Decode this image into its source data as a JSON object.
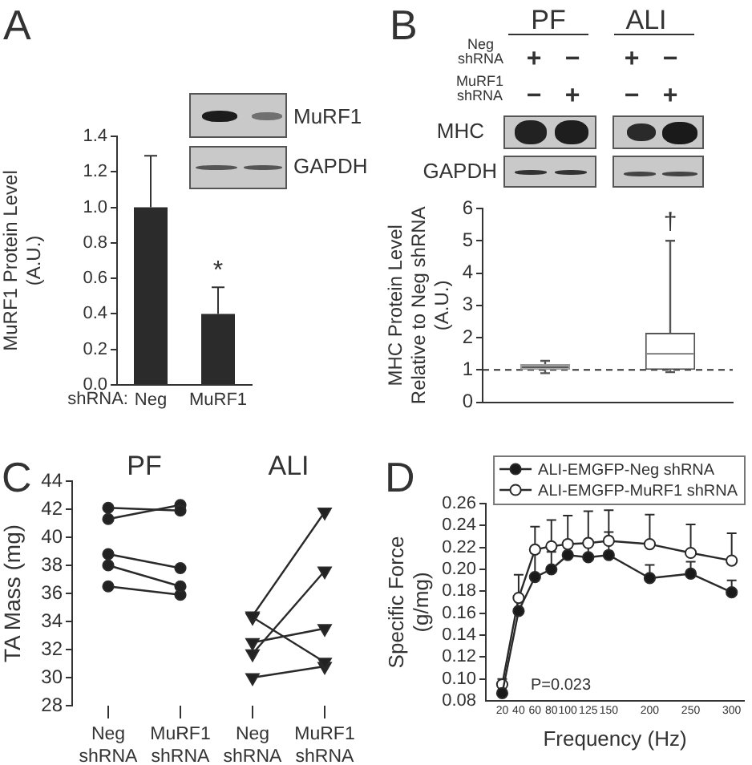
{
  "chart_data": [
    {
      "type": "bar",
      "ylabel": "MuRF1 Protein Level (A.U.)",
      "xlabel": "shRNA:",
      "categories": [
        "Neg",
        "MuRF1"
      ],
      "values": [
        1.0,
        0.4
      ],
      "errors": [
        [
          1.0,
          1.29
        ],
        [
          0.4,
          0.55
        ]
      ],
      "color": "#2b2b2b",
      "ylim": [
        0,
        1.4
      ],
      "yticks": [
        {
          "value": 0,
          "label": "0.0"
        },
        0.2,
        0.4,
        0.6,
        0.8,
        {
          "value": 1,
          "label": "1.0"
        },
        1.2,
        1.4
      ],
      "annotations": [
        "A",
        "MuRF1",
        "GAPDH",
        "*"
      ]
    },
    {
      "type": "box",
      "ylabel": "MHC Protein Level Relative to Neg shRNA (A.U.)",
      "categories": [
        null,
        null
      ],
      "boxes": [
        {
          "low": 0.9,
          "q1": 1.0,
          "median": 1.08,
          "q3": 1.18,
          "high": 1.28
        },
        {
          "low": 0.93,
          "q1": 1.0,
          "median": 1.5,
          "q3": 2.15,
          "high": 5.0
        }
      ],
      "colors": [
        "#999999",
        "#555555"
      ],
      "ylim": [
        0,
        6
      ],
      "yticks": [
        0,
        1,
        2,
        3,
        4,
        5,
        6
      ],
      "tick_labels": "y",
      "ref_lines": [
        {
          "axis": "y",
          "value": 1,
          "line_style": "dashed",
          "color": "#333333"
        }
      ],
      "annotations": [
        "B",
        "PF",
        "ALI",
        "Neg shRNA",
        "+",
        "−",
        "+",
        "−",
        "MuRF1 shRNA",
        "−",
        "+",
        "−",
        "+",
        "MHC",
        "GAPDH",
        "†"
      ]
    },
    {
      "type": "line",
      "ylabel": "TA Mass (mg)",
      "categories": [
        "Neg shRNA",
        "MuRF1 shRNA",
        "Neg shRNA",
        "MuRF1 shRNA"
      ],
      "series": [
        {
          "color": "#222222",
          "marker": "circle",
          "values": [
            42.1,
            41.9,
            null,
            null
          ]
        },
        {
          "color": "#222222",
          "marker": "circle",
          "values": [
            41.3,
            42.3,
            null,
            null
          ]
        },
        {
          "color": "#222222",
          "marker": "circle",
          "values": [
            38.8,
            37.8,
            null,
            null
          ]
        },
        {
          "color": "#222222",
          "marker": "circle",
          "values": [
            38.0,
            36.5,
            null,
            null
          ]
        },
        {
          "color": "#222222",
          "marker": "circle",
          "values": [
            36.5,
            35.9,
            null,
            null
          ]
        },
        {
          "color": "#222222",
          "marker": "triangle",
          "values": [
            null,
            null,
            34.4,
            41.8
          ]
        },
        {
          "color": "#222222",
          "marker": "triangle",
          "values": [
            null,
            null,
            31.7,
            37.6
          ]
        },
        {
          "color": "#222222",
          "marker": "triangle",
          "values": [
            null,
            null,
            32.5,
            33.5
          ]
        },
        {
          "color": "#222222",
          "marker": "triangle",
          "values": [
            null,
            null,
            34.3,
            31.1
          ]
        },
        {
          "color": "#222222",
          "marker": "triangle",
          "values": [
            null,
            null,
            30.0,
            30.8
          ]
        }
      ],
      "ylim": [
        28,
        44
      ],
      "yticks": [
        28,
        30,
        32,
        34,
        36,
        38,
        40,
        42,
        44
      ],
      "annotations": [
        "C",
        "PF",
        "ALI"
      ]
    },
    {
      "type": "line",
      "xlabel": "Frequency (Hz)",
      "ylabel": "Specific Force (g/mg)",
      "x": [
        20,
        40,
        60,
        80,
        100,
        125,
        150,
        200,
        250,
        300
      ],
      "series": [
        {
          "name": "ALI-EMGFP-Neg shRNA",
          "color": "#1a1a1a",
          "marker": "circle",
          "values": [
            0.087,
            0.162,
            0.193,
            0.2,
            0.213,
            0.211,
            0.213,
            0.192,
            0.196,
            0.179
          ],
          "errors": [
            null,
            null,
            [
              0.193,
              0.215
            ],
            [
              0.2,
              0.216
            ],
            [
              0.213,
              0.226
            ],
            [
              0.211,
              0.224
            ],
            [
              0.213,
              0.234
            ],
            [
              0.192,
              0.204
            ],
            [
              0.196,
              0.207
            ],
            [
              0.179,
              0.19
            ]
          ]
        },
        {
          "name": "ALI-EMGFP-MuRF1 shRNA",
          "color": "#ffffff",
          "marker": "circle",
          "values": [
            0.095,
            0.174,
            0.218,
            0.221,
            0.223,
            0.224,
            0.226,
            0.223,
            0.215,
            0.208
          ],
          "errors": [
            [
              0.095,
              0.1
            ],
            [
              0.174,
              0.195
            ],
            [
              0.218,
              0.239
            ],
            [
              0.221,
              0.245
            ],
            [
              0.223,
              0.249
            ],
            [
              0.224,
              0.253
            ],
            [
              0.226,
              0.254
            ],
            [
              0.223,
              0.25
            ],
            [
              0.215,
              0.241
            ],
            [
              0.208,
              0.233
            ]
          ]
        }
      ],
      "xlim": [
        0,
        315
      ],
      "xticks": [
        20,
        40,
        60,
        80,
        100,
        125,
        150,
        200,
        250,
        300
      ],
      "ylim": [
        0.08,
        0.26
      ],
      "yticks": [
        0.08,
        {
          "value": 0.1,
          "label": "0.10"
        },
        0.12,
        0.14,
        0.16,
        0.18,
        {
          "value": 0.2,
          "label": "0.20"
        },
        0.22,
        0.24,
        0.26
      ],
      "legend": "top right",
      "annotations": [
        "D",
        "P=0.023"
      ]
    }
  ]
}
